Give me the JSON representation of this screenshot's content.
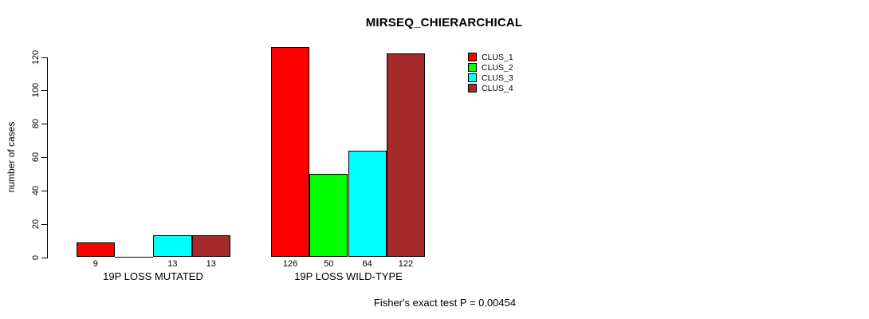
{
  "title": "MIRSEQ_CHIERARCHICAL",
  "footer": "Fisher's exact test P = 0.00454",
  "colors": {
    "clus_1": "#FF0000",
    "clus_2": "#00FF00",
    "clus_3": "#00FFFF",
    "clus_4": "#A52A2A",
    "axis": "#000000",
    "background": "#FFFFFF"
  },
  "legend": [
    {
      "label": "CLUS_1",
      "color": "#FF0000"
    },
    {
      "label": "CLUS_2",
      "color": "#00FF00"
    },
    {
      "label": "CLUS_3",
      "color": "#00FFFF"
    },
    {
      "label": "CLUS_4",
      "color": "#A52A2A"
    }
  ],
  "chart_data": {
    "type": "bar",
    "title": "MIRSEQ_CHIERARCHICAL",
    "ylabel": "number of cases",
    "xlabel": "",
    "categories": [
      "19P LOSS MUTATED",
      "19P LOSS WILD-TYPE"
    ],
    "series": [
      {
        "name": "CLUS_1",
        "color": "#FF0000",
        "values": [
          9,
          126
        ]
      },
      {
        "name": "CLUS_2",
        "color": "#00FF00",
        "values": [
          0,
          50
        ]
      },
      {
        "name": "CLUS_3",
        "color": "#00FFFF",
        "values": [
          13,
          64
        ]
      },
      {
        "name": "CLUS_4",
        "color": "#A52A2A",
        "values": [
          13,
          122
        ]
      }
    ],
    "bar_value_labels": [
      [
        "9",
        "",
        "13",
        "13"
      ],
      [
        "126",
        "50",
        "64",
        "122"
      ]
    ],
    "yticks": [
      0,
      20,
      40,
      60,
      80,
      100,
      120
    ],
    "ylim": [
      0,
      129
    ],
    "grid": false,
    "legend_position": "top-right",
    "annotation": "Fisher's exact test P = 0.00454"
  }
}
